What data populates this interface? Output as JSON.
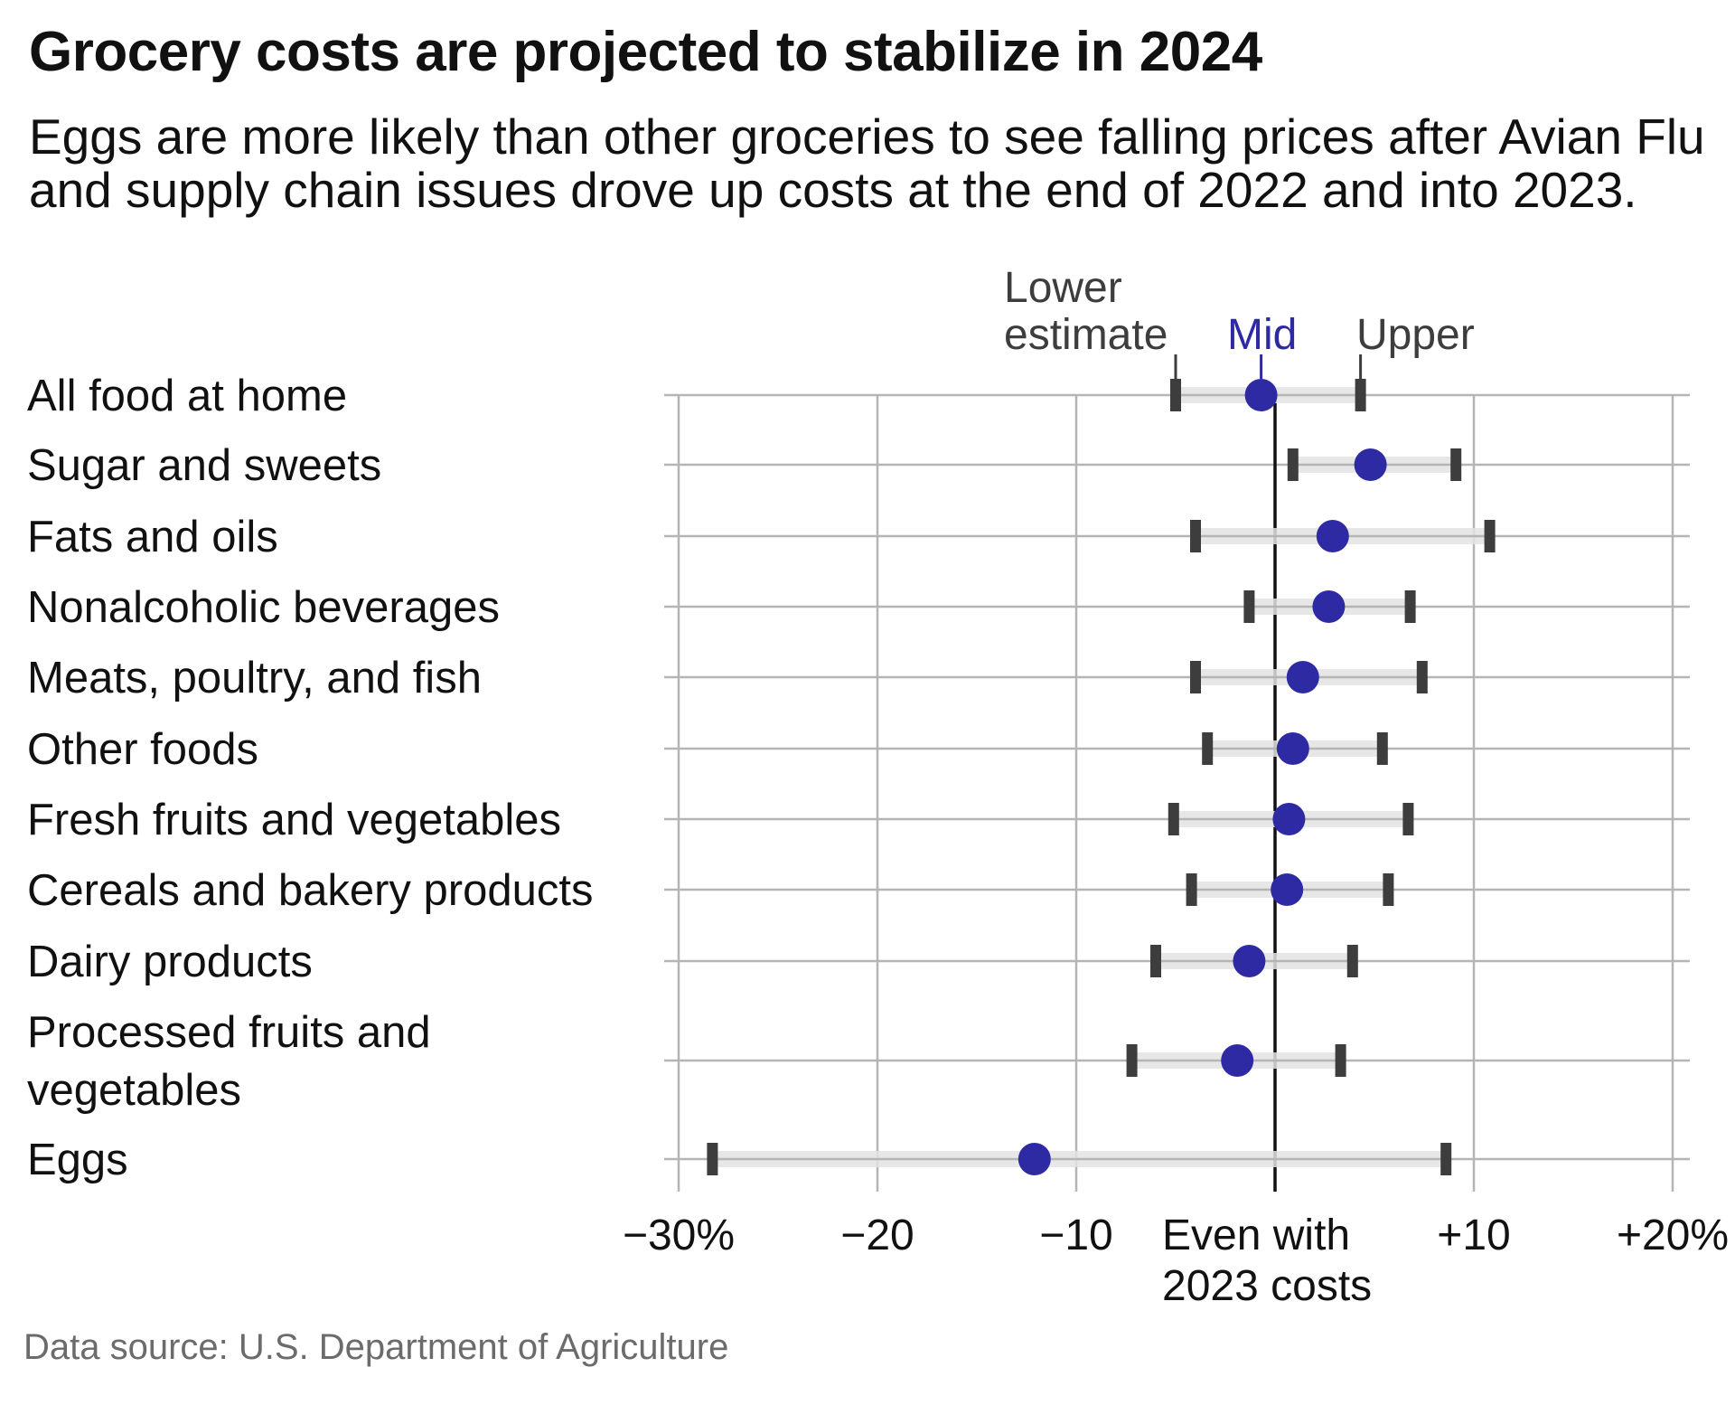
{
  "chart_data": {
    "type": "dot-range",
    "title": "Grocery costs are projected to stabilize in 2024",
    "subtitle": "Eggs are more likely than other groceries to see falling prices after Avian Flu and supply chain issues drove up costs at the end of 2022 and into 2023.",
    "source": "Data source: U.S. Department of Agriculture",
    "xlim": [
      -30,
      20
    ],
    "xticks": [
      -30,
      -20,
      -10,
      0,
      10,
      20
    ],
    "xtick_labels": [
      "−30%",
      "−20",
      "−10",
      "Even with 2023 costs",
      "+10",
      "+20%"
    ],
    "grid": true,
    "legend": {
      "lower": "Lower estimate",
      "mid": "Mid",
      "upper": "Upper"
    },
    "colors": {
      "mid": "#2e2aa3",
      "whisker": "#3d3d3d",
      "range": "#e3e3e3",
      "grid": "#b5b5b5",
      "zero": "#111111"
    },
    "categories": [
      "All food at home",
      "Sugar and sweets",
      "Fats and oils",
      "Nonalcoholic beverages",
      "Meats, poultry, and fish",
      "Other foods",
      "Fresh fruits and vegetables",
      "Cereals and bakery products",
      "Dairy products",
      "Processed fruits and vegetables",
      "Eggs"
    ],
    "series": [
      {
        "name": "Lower estimate",
        "values": [
          -5.0,
          0.9,
          -4.0,
          -1.3,
          -4.0,
          -3.4,
          -5.1,
          -4.2,
          -6.0,
          -7.2,
          -28.3
        ]
      },
      {
        "name": "Mid",
        "values": [
          -0.7,
          4.8,
          2.9,
          2.7,
          1.4,
          0.9,
          0.7,
          0.6,
          -1.3,
          -1.9,
          -12.1
        ]
      },
      {
        "name": "Upper",
        "values": [
          4.3,
          9.1,
          10.8,
          6.8,
          7.4,
          5.4,
          6.7,
          5.7,
          3.9,
          3.3,
          8.6
        ]
      }
    ]
  }
}
